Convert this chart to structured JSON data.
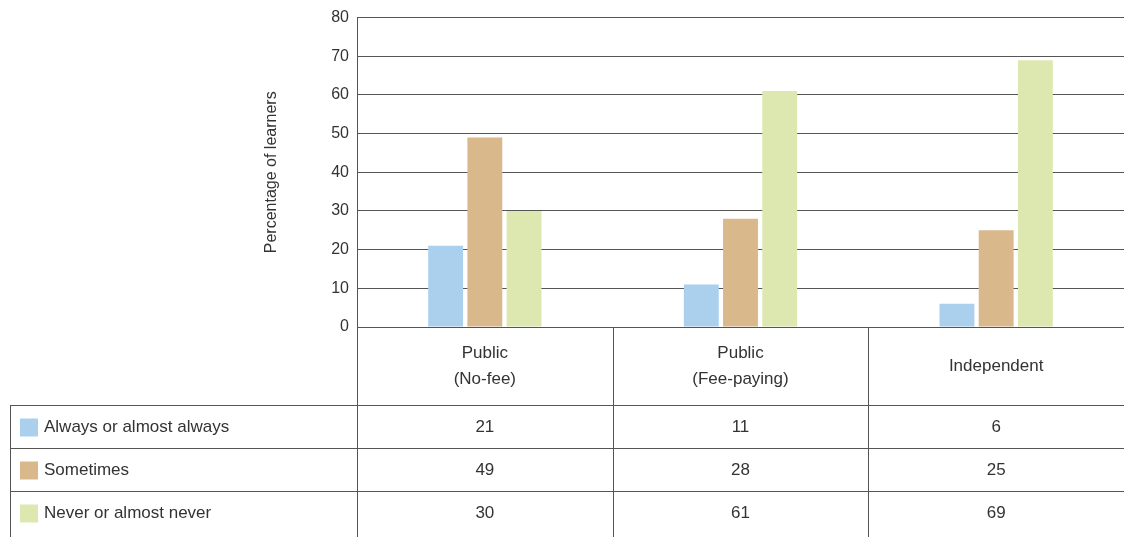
{
  "chart_data": {
    "type": "bar",
    "ylabel": "Percentage of learners",
    "categories": [
      "Public (No-fee)",
      "Public (Fee-paying)",
      "Independent"
    ],
    "series": [
      {
        "name": "Always or almost always",
        "color": "#abd0ee",
        "values": [
          21,
          11,
          6
        ]
      },
      {
        "name": "Sometimes",
        "color": "#d9b98c",
        "values": [
          49,
          28,
          25
        ]
      },
      {
        "name": "Never or almost never",
        "color": "#dde8b0",
        "values": [
          30,
          61,
          69
        ]
      }
    ],
    "ylim": [
      0,
      80
    ],
    "yticks": [
      0,
      10,
      20,
      30,
      40,
      50,
      60,
      70,
      80
    ],
    "grid": "y",
    "legend": "bottom left",
    "data_labels": true
  }
}
